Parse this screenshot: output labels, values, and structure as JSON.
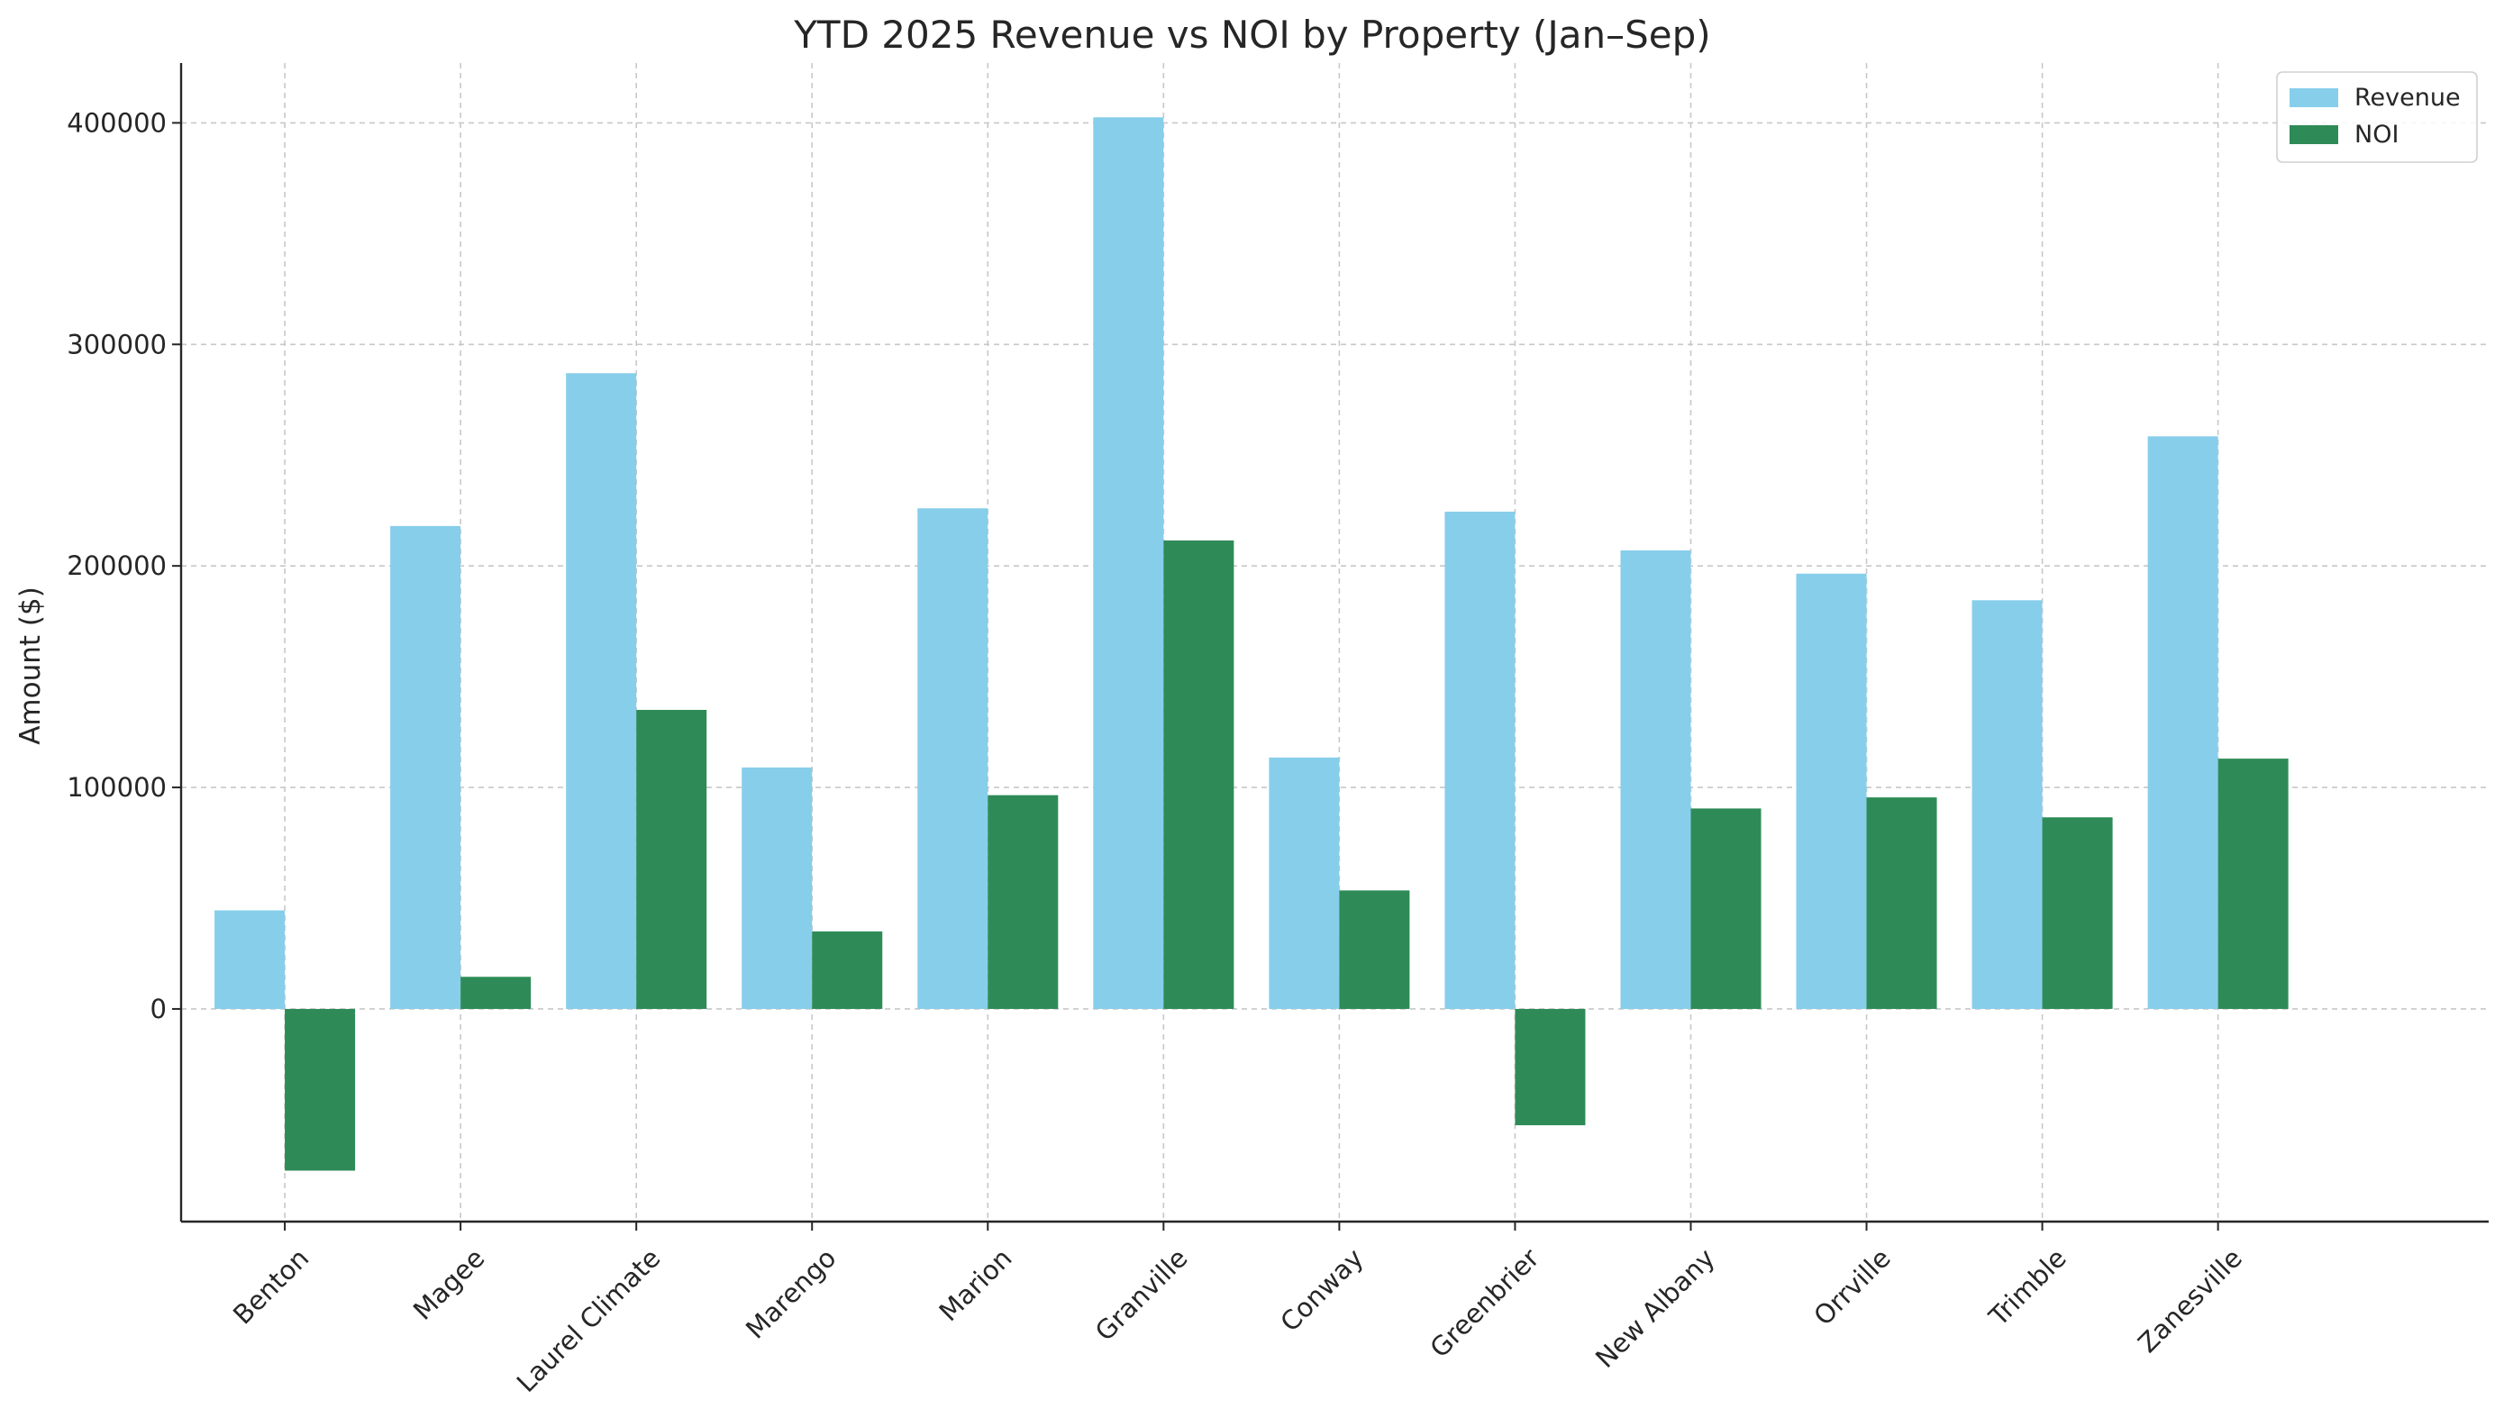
{
  "chart_data": {
    "type": "bar",
    "title": "YTD 2025 Revenue vs NOI by Property (Jan–Sep)",
    "xlabel": "",
    "ylabel": "Amount ($)",
    "categories": [
      "Benton",
      "Magee",
      "Laurel Climate",
      "Marengo",
      "Marion",
      "Granville",
      "Conway",
      "Greenbrier",
      "New Albany",
      "Orrville",
      "Trimble",
      "Zanesville"
    ],
    "series": [
      {
        "name": "Revenue",
        "color": "#87CEEB",
        "values": [
          44500,
          218000,
          287000,
          109000,
          226000,
          402500,
          113500,
          224500,
          207000,
          196500,
          184500,
          258500
        ]
      },
      {
        "name": "NOI",
        "color": "#2E8B57",
        "values": [
          -73000,
          14500,
          135000,
          35000,
          96500,
          211500,
          53500,
          -52500,
          90500,
          95500,
          86500,
          113000
        ]
      }
    ],
    "ylim": [
      -96000,
      427000
    ],
    "yticks": [
      0,
      100000,
      200000,
      300000,
      400000
    ],
    "grid": true,
    "legend": "top-right"
  }
}
